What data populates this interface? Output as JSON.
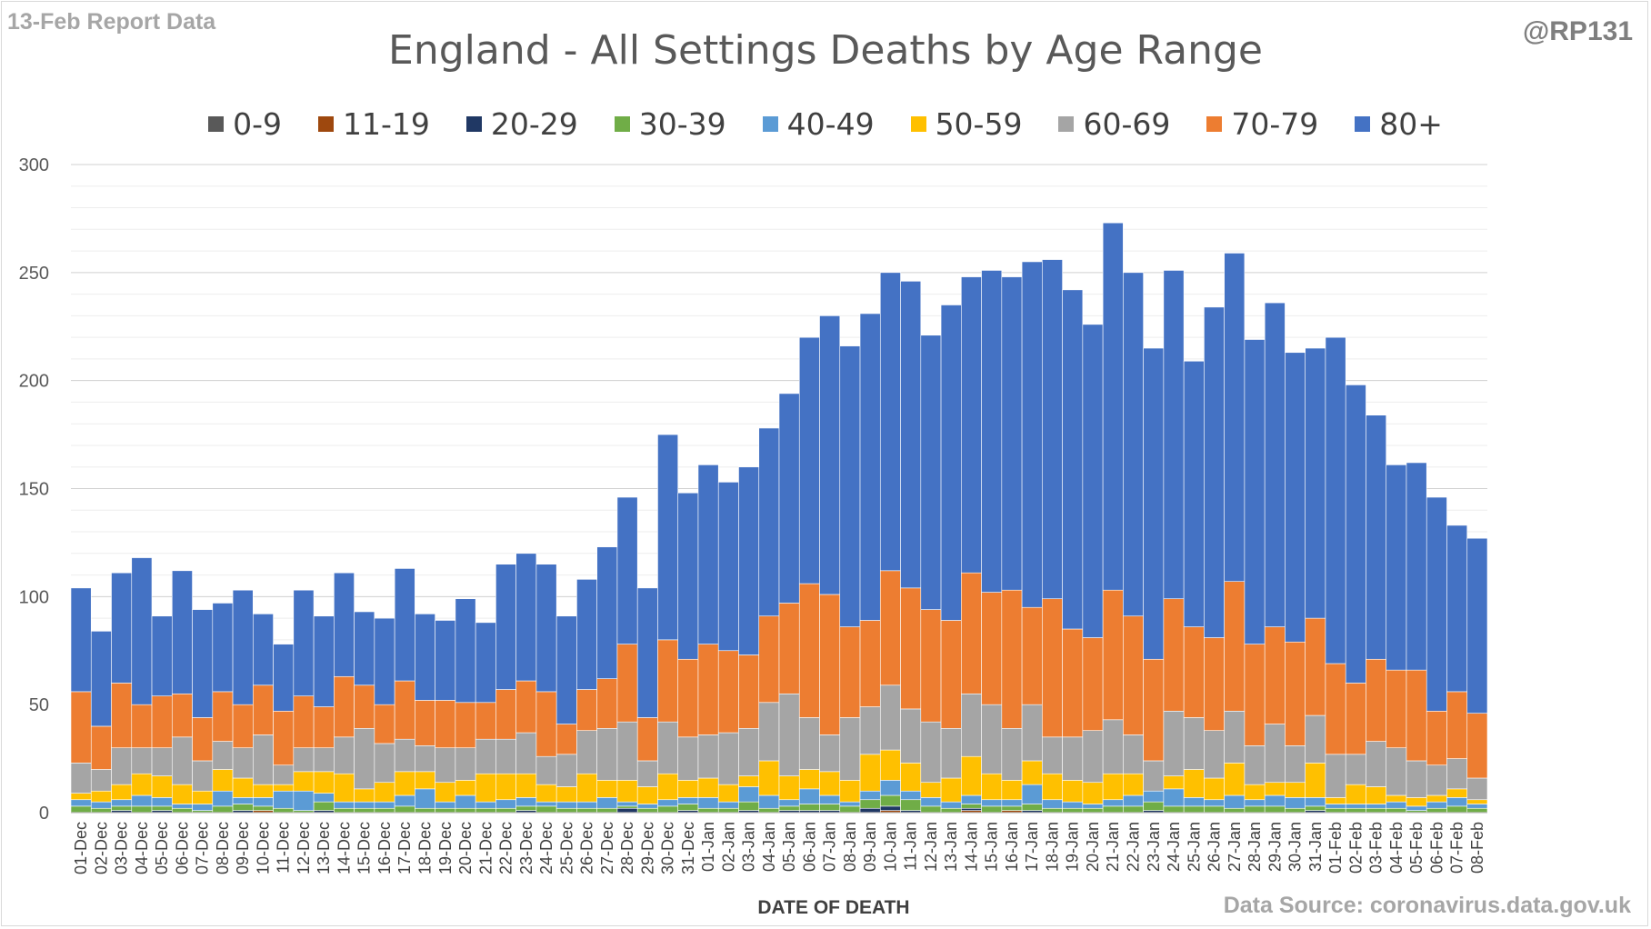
{
  "header": {
    "report_tag": "13-Feb Report Data",
    "handle": "@RP131",
    "source": "Data Source: coronavirus.data.gov.uk"
  },
  "chart_data": {
    "type": "bar",
    "stacked": true,
    "title": "England - All Settings Deaths by Age Range",
    "xlabel": "DATE OF DEATH",
    "ylabel": "",
    "ylim": [
      0,
      300
    ],
    "yticks": [
      0,
      50,
      100,
      150,
      200,
      250,
      300
    ],
    "grid": true,
    "legend_position": "top",
    "categories": [
      "01-Dec",
      "02-Dec",
      "03-Dec",
      "04-Dec",
      "05-Dec",
      "06-Dec",
      "07-Dec",
      "08-Dec",
      "09-Dec",
      "10-Dec",
      "11-Dec",
      "12-Dec",
      "13-Dec",
      "14-Dec",
      "15-Dec",
      "16-Dec",
      "17-Dec",
      "18-Dec",
      "19-Dec",
      "20-Dec",
      "21-Dec",
      "22-Dec",
      "23-Dec",
      "24-Dec",
      "25-Dec",
      "26-Dec",
      "27-Dec",
      "28-Dec",
      "29-Dec",
      "30-Dec",
      "31-Dec",
      "01-Jan",
      "02-Jan",
      "03-Jan",
      "04-Jan",
      "05-Jan",
      "06-Jan",
      "07-Jan",
      "08-Jan",
      "09-Jan",
      "10-Jan",
      "11-Jan",
      "12-Jan",
      "13-Jan",
      "14-Jan",
      "15-Jan",
      "16-Jan",
      "17-Jan",
      "18-Jan",
      "19-Jan",
      "20-Jan",
      "21-Jan",
      "22-Jan",
      "23-Jan",
      "24-Jan",
      "25-Jan",
      "26-Jan",
      "27-Jan",
      "28-Jan",
      "29-Jan",
      "30-Jan",
      "31-Jan",
      "01-Feb",
      "02-Feb",
      "03-Feb",
      "04-Feb",
      "05-Feb",
      "06-Feb",
      "07-Feb",
      "08-Feb"
    ],
    "series": [
      {
        "name": "0-9",
        "color": "#595959",
        "values": [
          0,
          0,
          0,
          0,
          0,
          0,
          0,
          0,
          0,
          0,
          0,
          0,
          0,
          0,
          0,
          0,
          0,
          0,
          0,
          0,
          0,
          0,
          0,
          0,
          0,
          0,
          0,
          0,
          0,
          0,
          0,
          0,
          0,
          0,
          0,
          0,
          0,
          0,
          0,
          0,
          0,
          0,
          0,
          0,
          0,
          0,
          0,
          0,
          0,
          0,
          0,
          0,
          0,
          0,
          0,
          0,
          0,
          0,
          0,
          0,
          0,
          0,
          0,
          0,
          0,
          0,
          0,
          0,
          0,
          0
        ]
      },
      {
        "name": "11-19",
        "color": "#9e480e",
        "values": [
          0,
          0,
          0,
          0,
          0,
          0,
          0,
          0,
          0,
          1,
          0,
          0,
          0,
          0,
          0,
          0,
          0,
          0,
          0,
          0,
          0,
          0,
          0,
          0,
          0,
          0,
          0,
          0,
          0,
          0,
          0,
          0,
          0,
          0,
          0,
          0,
          0,
          0,
          0,
          0,
          1,
          0,
          0,
          0,
          1,
          0,
          1,
          0,
          0,
          0,
          0,
          0,
          0,
          0,
          0,
          0,
          0,
          0,
          0,
          0,
          0,
          0,
          0,
          0,
          0,
          0,
          0,
          0,
          0,
          0
        ]
      },
      {
        "name": "20-29",
        "color": "#203864",
        "values": [
          0,
          0,
          1,
          0,
          1,
          0,
          0,
          0,
          1,
          0,
          0,
          0,
          1,
          0,
          0,
          0,
          0,
          0,
          0,
          0,
          0,
          0,
          1,
          0,
          0,
          0,
          0,
          2,
          0,
          0,
          1,
          0,
          0,
          1,
          0,
          1,
          1,
          1,
          0,
          2,
          2,
          1,
          0,
          0,
          1,
          0,
          0,
          1,
          0,
          0,
          0,
          0,
          0,
          1,
          0,
          0,
          0,
          0,
          0,
          0,
          0,
          1,
          0,
          0,
          0,
          0,
          0,
          0,
          0,
          0
        ]
      },
      {
        "name": "30-39",
        "color": "#70ad47",
        "values": [
          3,
          2,
          2,
          3,
          2,
          2,
          1,
          3,
          3,
          2,
          2,
          1,
          4,
          2,
          2,
          2,
          3,
          2,
          2,
          2,
          2,
          2,
          2,
          3,
          2,
          2,
          2,
          1,
          2,
          3,
          3,
          2,
          2,
          4,
          2,
          2,
          3,
          3,
          3,
          4,
          5,
          5,
          3,
          2,
          2,
          3,
          2,
          3,
          2,
          2,
          2,
          3,
          3,
          4,
          3,
          3,
          3,
          2,
          3,
          3,
          2,
          2,
          2,
          2,
          2,
          2,
          1,
          2,
          3,
          2
        ]
      },
      {
        "name": "40-49",
        "color": "#5b9bd5",
        "values": [
          3,
          3,
          3,
          5,
          4,
          2,
          3,
          7,
          3,
          4,
          8,
          9,
          4,
          3,
          3,
          3,
          5,
          9,
          3,
          6,
          3,
          4,
          4,
          2,
          3,
          3,
          5,
          2,
          2,
          3,
          3,
          5,
          3,
          7,
          6,
          3,
          7,
          4,
          2,
          4,
          7,
          4,
          4,
          3,
          4,
          3,
          3,
          9,
          4,
          3,
          2,
          3,
          5,
          5,
          8,
          4,
          3,
          6,
          3,
          5,
          5,
          4,
          2,
          2,
          2,
          3,
          2,
          3,
          4,
          2
        ]
      },
      {
        "name": "50-59",
        "color": "#ffc000",
        "values": [
          3,
          5,
          7,
          10,
          10,
          9,
          6,
          10,
          9,
          6,
          3,
          9,
          10,
          13,
          6,
          9,
          11,
          8,
          9,
          7,
          13,
          12,
          11,
          8,
          7,
          13,
          8,
          10,
          8,
          12,
          8,
          9,
          8,
          5,
          16,
          11,
          9,
          11,
          10,
          17,
          14,
          13,
          7,
          11,
          18,
          12,
          9,
          11,
          12,
          10,
          10,
          12,
          10,
          0,
          6,
          13,
          10,
          15,
          7,
          6,
          7,
          16,
          3,
          9,
          8,
          3,
          4,
          3,
          4,
          2
        ]
      },
      {
        "name": "60-69",
        "color": "#a5a5a5",
        "values": [
          14,
          10,
          17,
          12,
          13,
          22,
          14,
          13,
          14,
          23,
          9,
          11,
          11,
          17,
          28,
          18,
          15,
          12,
          16,
          15,
          16,
          16,
          19,
          13,
          15,
          20,
          24,
          27,
          12,
          24,
          20,
          20,
          24,
          22,
          27,
          38,
          24,
          17,
          29,
          22,
          30,
          25,
          28,
          23,
          29,
          32,
          24,
          26,
          17,
          20,
          24,
          25,
          18,
          14,
          30,
          24,
          22,
          24,
          18,
          27,
          17,
          22,
          20,
          14,
          21,
          22,
          17,
          14,
          14,
          10
        ]
      },
      {
        "name": "70-79",
        "color": "#ed7d31",
        "values": [
          33,
          20,
          30,
          20,
          24,
          20,
          20,
          23,
          20,
          23,
          25,
          24,
          19,
          28,
          20,
          18,
          27,
          21,
          22,
          21,
          17,
          23,
          24,
          30,
          14,
          19,
          23,
          36,
          20,
          38,
          36,
          42,
          38,
          34,
          40,
          42,
          62,
          65,
          42,
          40,
          53,
          56,
          52,
          50,
          56,
          52,
          64,
          45,
          64,
          50,
          43,
          60,
          55,
          47,
          52,
          42,
          43,
          60,
          47,
          45,
          48,
          45,
          42,
          33,
          38,
          36,
          42,
          25,
          31,
          30
        ]
      },
      {
        "name": "80+",
        "color": "#4472c4",
        "values": [
          48,
          44,
          51,
          68,
          37,
          57,
          50,
          41,
          53,
          33,
          31,
          49,
          42,
          48,
          34,
          40,
          52,
          40,
          37,
          48,
          37,
          58,
          59,
          59,
          50,
          51,
          61,
          68,
          60,
          95,
          77,
          83,
          78,
          87,
          87,
          97,
          114,
          129,
          130,
          142,
          138,
          142,
          127,
          146,
          137,
          149,
          145,
          160,
          157,
          157,
          145,
          170,
          159,
          144,
          152,
          123,
          153,
          152,
          141,
          150,
          134,
          125,
          151,
          138,
          113,
          95,
          96,
          99,
          77,
          81
        ]
      }
    ]
  }
}
